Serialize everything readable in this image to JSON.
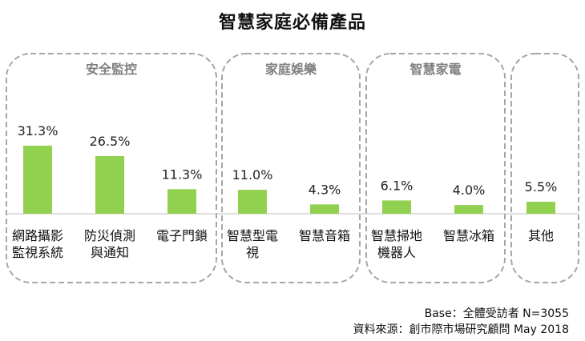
{
  "chart_data": {
    "type": "bar",
    "title": "智慧家庭必備產品",
    "xlabel": "",
    "ylabel": "",
    "ylim": [
      0,
      40
    ],
    "grid": false,
    "unit": "%",
    "groups": [
      {
        "name": "安全監控",
        "items": [
          {
            "label": [
              "網路攝影",
              "監視系統"
            ],
            "value": 31.3,
            "value_label": "31.3%"
          },
          {
            "label": [
              "防災偵測",
              "與通知"
            ],
            "value": 26.5,
            "value_label": "26.5%"
          },
          {
            "label": [
              "電子門鎖"
            ],
            "value": 11.3,
            "value_label": "11.3%"
          }
        ]
      },
      {
        "name": "家庭娛樂",
        "items": [
          {
            "label": [
              "智慧型電",
              "視"
            ],
            "value": 11.0,
            "value_label": "11.0%"
          },
          {
            "label": [
              "智慧音箱"
            ],
            "value": 4.3,
            "value_label": "4.3%"
          }
        ]
      },
      {
        "name": "智慧家電",
        "items": [
          {
            "label": [
              "智慧掃地",
              "機器人"
            ],
            "value": 6.1,
            "value_label": "6.1%"
          },
          {
            "label": [
              "智慧冰箱"
            ],
            "value": 4.0,
            "value_label": "4.0%"
          }
        ]
      },
      {
        "name": "",
        "items": [
          {
            "label": [
              "其他"
            ],
            "value": 5.5,
            "value_label": "5.5%"
          }
        ]
      }
    ],
    "colors": {
      "bar": "#92d050",
      "box": "#a6a6a6",
      "axis": "#bfbfbf",
      "group_title": "#7f7f7f"
    }
  },
  "notes": {
    "base": "Base：全體受訪者 N=3055",
    "source": "資料來源：創市際市場研究顧問 May 2018"
  }
}
